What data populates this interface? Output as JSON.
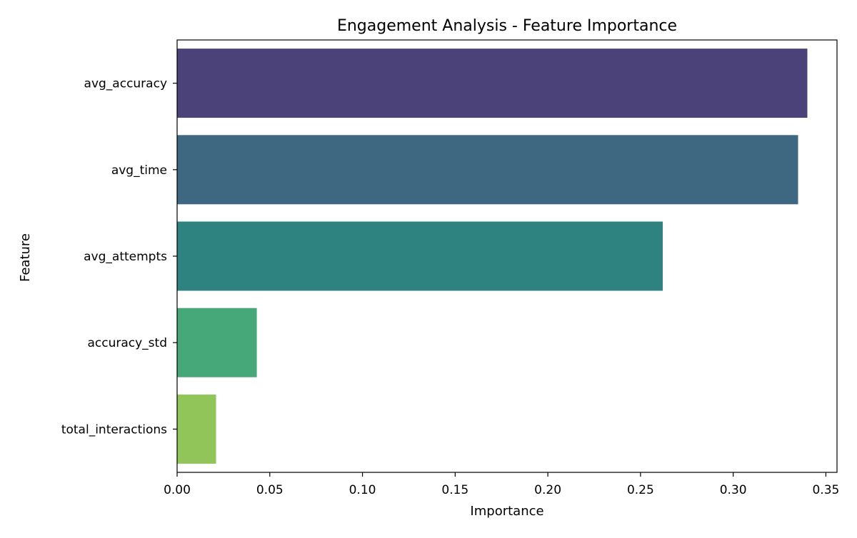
{
  "chart_data": {
    "type": "bar",
    "orientation": "horizontal",
    "title": "Engagement Analysis - Feature Importance",
    "xlabel": "Importance",
    "ylabel": "Feature",
    "categories": [
      "avg_accuracy",
      "avg_time",
      "avg_attempts",
      "accuracy_std",
      "total_interactions"
    ],
    "values": [
      0.34,
      0.335,
      0.262,
      0.043,
      0.021
    ],
    "colors": [
      "#4b4279",
      "#3e6782",
      "#2e8380",
      "#46a878",
      "#91c55a"
    ],
    "xlim": [
      0,
      0.356
    ],
    "xticks": [
      "0.00",
      "0.05",
      "0.10",
      "0.15",
      "0.20",
      "0.25",
      "0.30",
      "0.35"
    ],
    "grid": false,
    "legend": "none"
  }
}
